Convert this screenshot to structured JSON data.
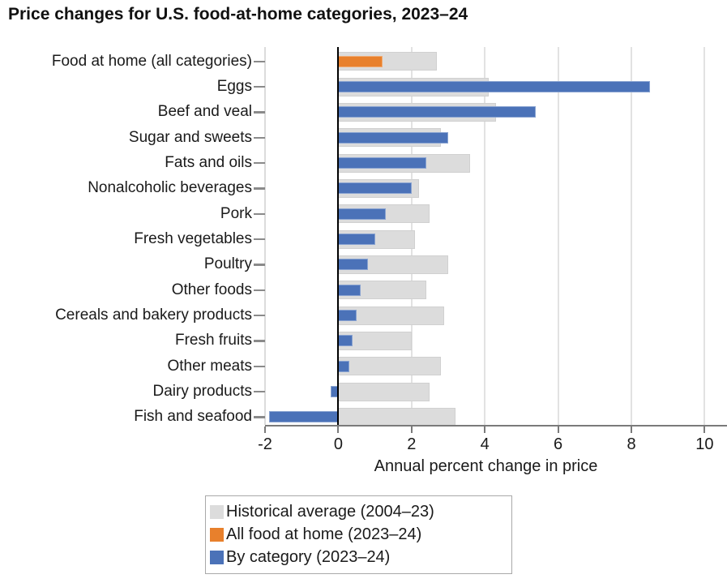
{
  "title": "Price changes for U.S. food-at-home categories, 2023–24",
  "chart_data": {
    "type": "bar",
    "orientation": "horizontal",
    "title": "Price changes for U.S. food-at-home categories, 2023–24",
    "xlabel": "Annual percent change in price",
    "ylabel": "",
    "xlim": [
      -2,
      10.3
    ],
    "xticks": [
      "-2",
      "0",
      "2",
      "4",
      "6",
      "8",
      "10"
    ],
    "xtick_values": [
      -2,
      0,
      2,
      4,
      6,
      8,
      10
    ],
    "grid": "vertical-light",
    "legend_position": "bottom",
    "categories": [
      "Food at home (all categories)",
      "Eggs",
      "Beef and veal",
      "Sugar and sweets",
      "Fats and oils",
      "Nonalcoholic beverages",
      "Pork",
      "Fresh vegetables",
      "Poultry",
      "Other foods",
      "Cereals and bakery products",
      "Fresh fruits",
      "Other meats",
      "Dairy products",
      "Fish and seafood"
    ],
    "series": [
      {
        "name": "Historical average (2004–23)",
        "color": "#DCDCDC",
        "values": [
          2.7,
          4.1,
          4.3,
          2.8,
          3.6,
          2.2,
          2.5,
          2.1,
          3.0,
          2.4,
          2.9,
          2.0,
          2.8,
          2.5,
          3.2
        ]
      },
      {
        "name": "All food at home (2023–24)",
        "color": "#E8802C",
        "values": [
          1.2,
          null,
          null,
          null,
          null,
          null,
          null,
          null,
          null,
          null,
          null,
          null,
          null,
          null,
          null
        ]
      },
      {
        "name": "By category (2023–24)",
        "color": "#4B72B8",
        "values": [
          null,
          8.5,
          5.4,
          3.0,
          2.4,
          2.0,
          1.3,
          1.0,
          0.8,
          0.6,
          0.5,
          0.4,
          0.3,
          -0.2,
          -1.9
        ]
      }
    ],
    "colors": {
      "historical": "#DCDCDC",
      "all_food_at_home": "#E8802C",
      "by_category": "#4B72B8",
      "zero_line": "#000000",
      "axis_line": "#7a7a7a",
      "gridline": "#E2E2E2",
      "left_spine": "#DCDCDC",
      "text": "#1a1a1a"
    }
  }
}
